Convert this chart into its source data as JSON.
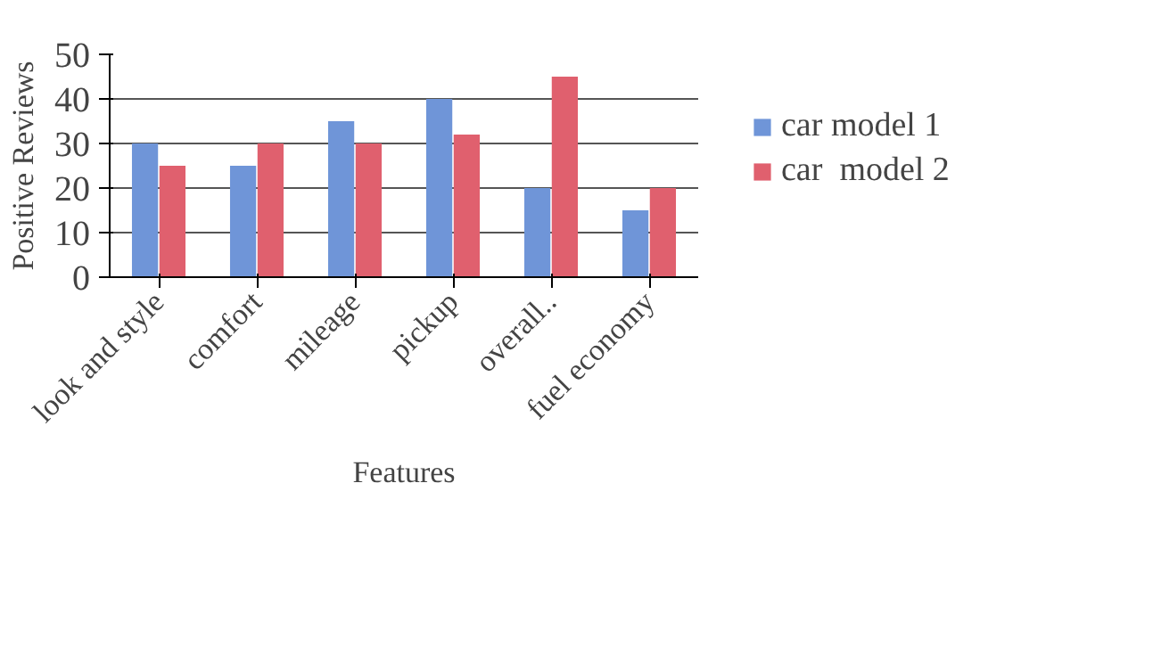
{
  "chart_data": {
    "type": "bar",
    "xlabel": "Features",
    "ylabel": "Positive Reviews",
    "categories": [
      "look and style",
      "comfort",
      "mileage",
      "pickup",
      "overall..",
      "fuel economy"
    ],
    "series": [
      {
        "name": "car model 1",
        "color": "#6f95d8",
        "values": [
          30,
          25,
          35,
          40,
          20,
          15
        ]
      },
      {
        "name": "car  model 2",
        "color": "#e0606e",
        "values": [
          25,
          30,
          30,
          32,
          45,
          20
        ]
      }
    ],
    "ylim": [
      0,
      50
    ],
    "yticks": [
      0,
      10,
      20,
      30,
      40,
      50
    ],
    "grid": "y",
    "legend": "right"
  }
}
